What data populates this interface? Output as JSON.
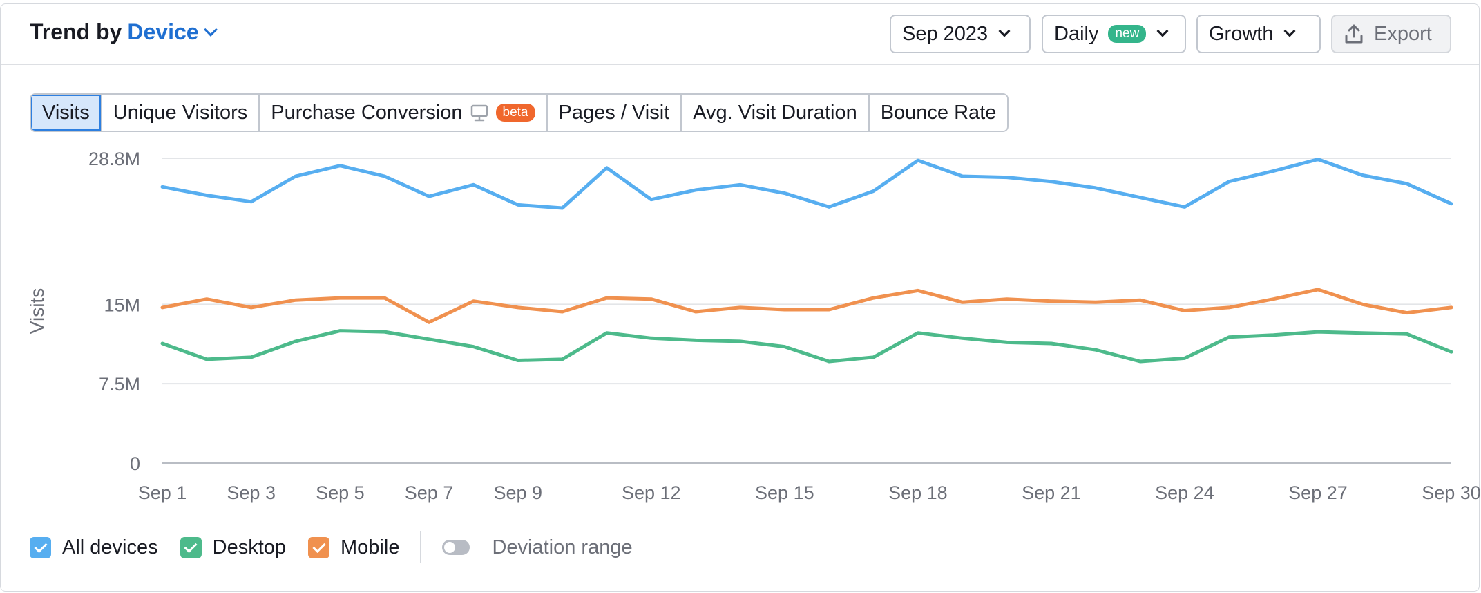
{
  "header": {
    "title_prefix": "Trend by",
    "dimension": "Device",
    "date": "Sep 2023",
    "granularity": "Daily",
    "granularity_badge": "new",
    "mode": "Growth",
    "export": "Export"
  },
  "tabs": [
    {
      "label": "Visits",
      "active": true
    },
    {
      "label": "Unique Visitors"
    },
    {
      "label": "Purchase Conversion",
      "icon": "desktop-icon",
      "badge": "beta"
    },
    {
      "label": "Pages / Visit"
    },
    {
      "label": "Avg. Visit Duration"
    },
    {
      "label": "Bounce Rate"
    }
  ],
  "legend": {
    "items": [
      {
        "label": "All devices",
        "color": "#57aef0"
      },
      {
        "label": "Desktop",
        "color": "#4dba8b"
      },
      {
        "label": "Mobile",
        "color": "#f0914f"
      }
    ],
    "deviation": "Deviation range"
  },
  "chart_data": {
    "type": "line",
    "ylabel": "Visits",
    "y_ticks": [
      {
        "value": 0,
        "label": "0"
      },
      {
        "value": 7.5,
        "label": "7.5M"
      },
      {
        "value": 15,
        "label": "15M"
      },
      {
        "value": 28.8,
        "label": "28.8M"
      }
    ],
    "ylim": [
      0,
      28.8
    ],
    "x": [
      "Sep 1",
      "Sep 2",
      "Sep 3",
      "Sep 4",
      "Sep 5",
      "Sep 6",
      "Sep 7",
      "Sep 8",
      "Sep 9",
      "Sep 10",
      "Sep 11",
      "Sep 12",
      "Sep 13",
      "Sep 14",
      "Sep 15",
      "Sep 16",
      "Sep 17",
      "Sep 18",
      "Sep 19",
      "Sep 20",
      "Sep 21",
      "Sep 22",
      "Sep 23",
      "Sep 24",
      "Sep 25",
      "Sep 26",
      "Sep 27",
      "Sep 28",
      "Sep 29",
      "Sep 30"
    ],
    "x_tick_labels": [
      "Sep 1",
      "Sep 3",
      "Sep 5",
      "Sep 7",
      "Sep 9",
      "Sep 12",
      "Sep 15",
      "Sep 18",
      "Sep 21",
      "Sep 24",
      "Sep 27",
      "Sep 30"
    ],
    "series": [
      {
        "name": "All devices",
        "color": "#57aef0",
        "values": [
          26.1,
          25.3,
          24.7,
          27.1,
          28.1,
          27.1,
          25.2,
          26.3,
          24.4,
          24.1,
          27.9,
          24.9,
          25.8,
          26.3,
          25.5,
          24.2,
          25.7,
          28.6,
          27.1,
          27.0,
          26.6,
          26.0,
          25.1,
          24.2,
          26.6,
          27.6,
          28.7,
          27.2,
          26.4,
          24.5
        ]
      },
      {
        "name": "Mobile",
        "color": "#f0914f",
        "values": [
          14.7,
          15.5,
          14.7,
          15.4,
          15.6,
          15.6,
          13.3,
          15.3,
          14.7,
          14.3,
          15.6,
          15.5,
          14.3,
          14.7,
          14.5,
          14.5,
          15.6,
          16.3,
          15.2,
          15.5,
          15.3,
          15.2,
          15.4,
          14.4,
          14.7,
          15.5,
          16.4,
          15.0,
          14.2,
          14.7
        ]
      },
      {
        "name": "Desktop",
        "color": "#4dba8b",
        "values": [
          11.3,
          9.8,
          10.0,
          11.5,
          12.5,
          12.4,
          11.7,
          11.0,
          9.7,
          9.8,
          12.3,
          11.8,
          11.6,
          11.5,
          11.0,
          9.6,
          10.0,
          12.3,
          11.8,
          11.4,
          11.3,
          10.7,
          9.6,
          9.9,
          11.9,
          12.1,
          12.4,
          12.3,
          12.2,
          10.5
        ]
      }
    ]
  }
}
